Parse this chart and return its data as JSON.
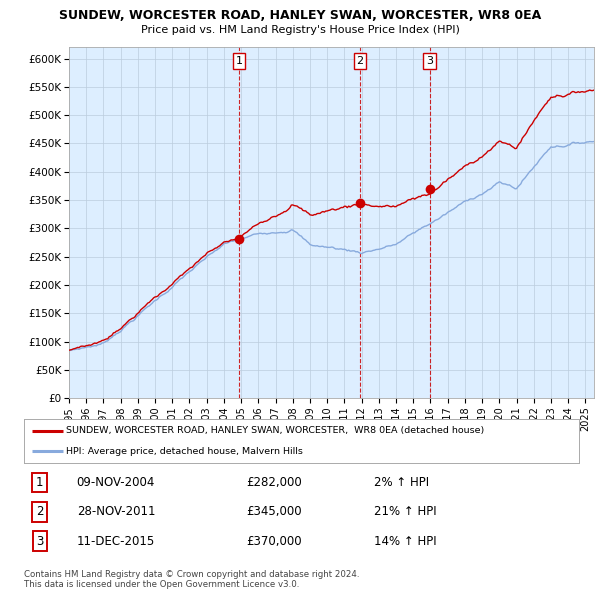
{
  "title": "SUNDEW, WORCESTER ROAD, HANLEY SWAN, WORCESTER, WR8 0EA",
  "subtitle": "Price paid vs. HM Land Registry's House Price Index (HPI)",
  "y_ticks": [
    0,
    50000,
    100000,
    150000,
    200000,
    250000,
    300000,
    350000,
    400000,
    450000,
    500000,
    550000,
    600000
  ],
  "y_tick_labels": [
    "£0",
    "£50K",
    "£100K",
    "£150K",
    "£200K",
    "£250K",
    "£300K",
    "£350K",
    "£400K",
    "£450K",
    "£500K",
    "£550K",
    "£600K"
  ],
  "ylim": [
    0,
    620000
  ],
  "xlim": [
    1995.0,
    2025.5
  ],
  "sale_years": [
    2004.87,
    2011.91,
    2015.95
  ],
  "sale_prices": [
    282000,
    345000,
    370000
  ],
  "sale_labels": [
    "1",
    "2",
    "3"
  ],
  "table_rows": [
    [
      "1",
      "09-NOV-2004",
      "£282,000",
      "2% ↑ HPI"
    ],
    [
      "2",
      "28-NOV-2011",
      "£345,000",
      "21% ↑ HPI"
    ],
    [
      "3",
      "11-DEC-2015",
      "£370,000",
      "14% ↑ HPI"
    ]
  ],
  "legend_house_label": "SUNDEW, WORCESTER ROAD, HANLEY SWAN, WORCESTER,  WR8 0EA (detached house)",
  "legend_hpi_label": "HPI: Average price, detached house, Malvern Hills",
  "house_line_color": "#cc0000",
  "hpi_line_color": "#88aadd",
  "sale_marker_color": "#cc0000",
  "vline_color": "#cc0000",
  "grid_color": "#bbccdd",
  "plot_bg_color": "#ddeeff",
  "footer": "Contains HM Land Registry data © Crown copyright and database right 2024.\nThis data is licensed under the Open Government Licence v3.0."
}
